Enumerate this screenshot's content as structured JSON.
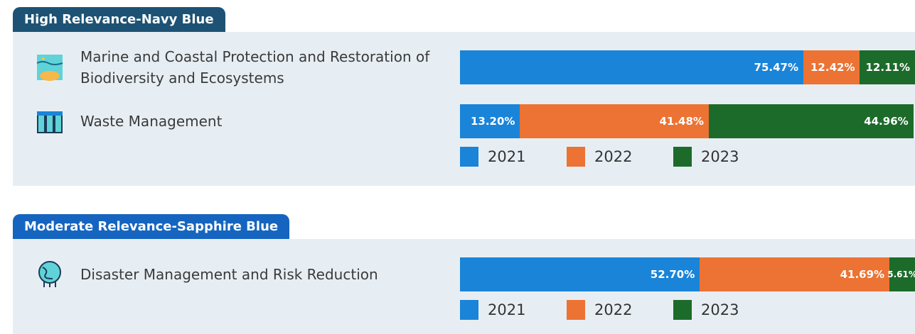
{
  "chart_data": [
    {
      "type": "bar",
      "orientation": "horizontal",
      "stacked": true,
      "title": "High Relevance-Navy Blue",
      "title_color": "#1d5274",
      "categories": [
        "Marine and Coastal Protection and Restoration of Biodiversity and Ecosystems",
        "Waste Management"
      ],
      "series": [
        {
          "name": "2021",
          "color": "#1a84d8",
          "values": [
            75.47,
            13.2
          ],
          "value_labels": [
            "75.47%",
            "13.20%"
          ]
        },
        {
          "name": "2022",
          "color": "#ec7333",
          "values": [
            12.42,
            41.48
          ],
          "value_labels": [
            "12.42%",
            "41.48%"
          ]
        },
        {
          "name": "2023",
          "color": "#1c6b2a",
          "values": [
            12.11,
            44.96
          ],
          "value_labels": [
            "12.11%",
            "44.96%"
          ]
        }
      ]
    },
    {
      "type": "bar",
      "orientation": "horizontal",
      "stacked": true,
      "title": "Moderate Relevance-Sapphire Blue",
      "title_color": "#1565c0",
      "categories": [
        "Disaster Management and Risk Reduction"
      ],
      "series": [
        {
          "name": "2021",
          "color": "#1a84d8",
          "values": [
            52.7
          ],
          "value_labels": [
            "52.70%"
          ]
        },
        {
          "name": "2022",
          "color": "#ec7333",
          "values": [
            41.69
          ],
          "value_labels": [
            "41.69%"
          ]
        },
        {
          "name": "2023",
          "color": "#1c6b2a",
          "values": [
            5.61
          ],
          "value_labels": [
            "5.61%"
          ]
        }
      ]
    }
  ]
}
